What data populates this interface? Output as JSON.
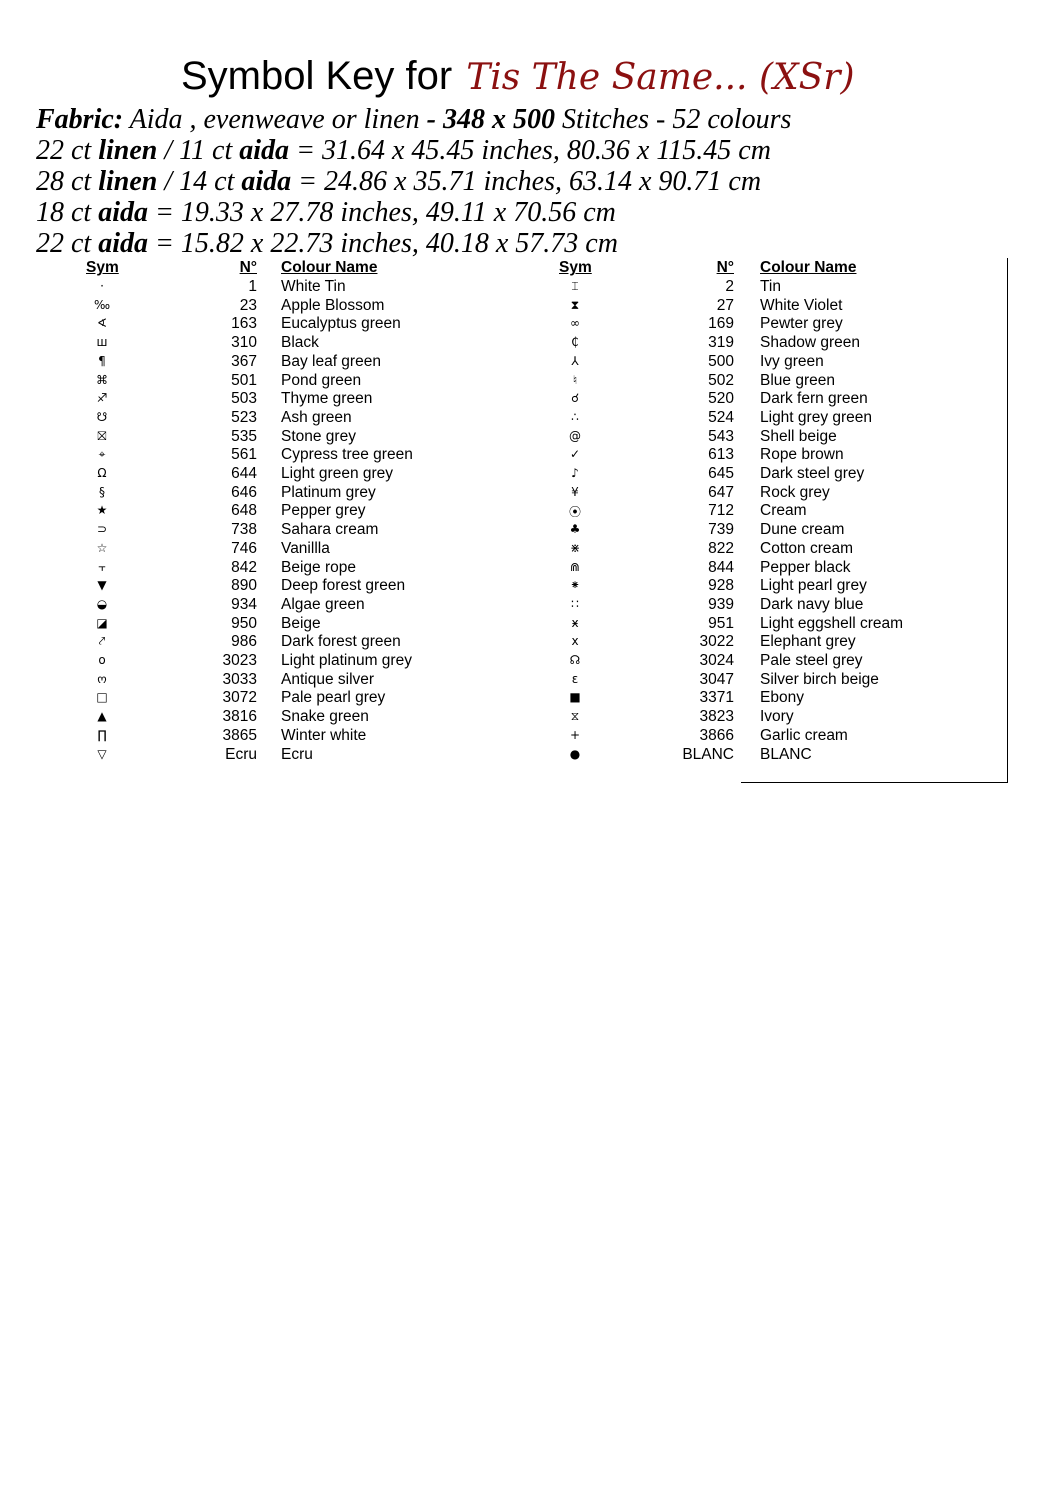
{
  "title": {
    "prefix": "Symbol Key for",
    "pattern_name": "Tis The Same... (XSr)",
    "pattern_color": "#8b1010"
  },
  "fabric": {
    "line1": {
      "label": "Fabric:",
      "text": " Aida , evenweave or  linen ",
      "bold": "- 348 x 500",
      "rest": " Stitches - 52 colours"
    },
    "sizes": [
      {
        "a": "22 ct ",
        "b": "linen",
        "c": " / 11 ct ",
        "d": "aida",
        "e": " = 31.64 x 45.45 inches, 80.36 x 115.45 cm"
      },
      {
        "a": "28 ct ",
        "b": "linen",
        "c": " / 14 ct ",
        "d": "aida",
        "e": " = 24.86 x 35.71 inches, 63.14 x 90.71 cm"
      },
      {
        "a": "18 ct ",
        "b": "aida",
        "c": "",
        "d": "",
        "e": "  = 19.33 x 27.78 inches, 49.11 x 70.56 cm"
      },
      {
        "a": "22 ct ",
        "b": "aida",
        "c": "",
        "d": "",
        "e": " = 15.82 x 22.73 inches, 40.18 x 57.73 cm"
      }
    ]
  },
  "headers": {
    "sym": "Sym",
    "num": "N°",
    "name": "Colour Name"
  },
  "left": [
    {
      "sym": "·",
      "num": "1",
      "name": "White Tin"
    },
    {
      "sym": "‰",
      "num": "23",
      "name": "Apple Blossom"
    },
    {
      "sym": "∢",
      "num": "163",
      "name": "Eucalyptus green"
    },
    {
      "sym": "ш",
      "num": "310",
      "name": "Black"
    },
    {
      "sym": "¶",
      "num": "367",
      "name": "Bay leaf green"
    },
    {
      "sym": "⌘",
      "num": "501",
      "name": "Pond green"
    },
    {
      "sym": "♐",
      "num": "503",
      "name": "Thyme green"
    },
    {
      "sym": "☋",
      "num": "523",
      "name": "Ash green"
    },
    {
      "sym": "⛝",
      "num": "535",
      "name": "Stone grey"
    },
    {
      "sym": "⌖",
      "num": "561",
      "name": "Cypress tree green"
    },
    {
      "sym": "Ω",
      "num": "644",
      "name": "Light green grey"
    },
    {
      "sym": "§",
      "num": "646",
      "name": "Platinum grey"
    },
    {
      "sym": "★",
      "num": "648",
      "name": "Pepper grey"
    },
    {
      "sym": "⊃",
      "num": "738",
      "name": "Sahara cream"
    },
    {
      "sym": "☆",
      "num": "746",
      "name": "Vanillla"
    },
    {
      "sym": "⫟",
      "num": "842",
      "name": "Beige rope"
    },
    {
      "sym": "▼",
      "num": "890",
      "name": "Deep forest green"
    },
    {
      "sym": "◒",
      "num": "934",
      "name": "Algae green"
    },
    {
      "sym": "◪",
      "num": "950",
      "name": "Beige"
    },
    {
      "sym": "⤤",
      "num": "986",
      "name": "Dark forest green"
    },
    {
      "sym": "o",
      "num": "3023",
      "name": "Light platinum grey"
    },
    {
      "sym": "ო",
      "num": "3033",
      "name": "Antique silver"
    },
    {
      "sym": "□",
      "num": "3072",
      "name": "Pale pearl grey"
    },
    {
      "sym": "▲",
      "num": "3816",
      "name": "Snake green"
    },
    {
      "sym": "∏",
      "num": "3865",
      "name": "Winter white"
    },
    {
      "sym": "▽",
      "num": "Ecru",
      "name": "Ecru"
    }
  ],
  "right": [
    {
      "sym": "⌶",
      "num": "2",
      "name": "Tin"
    },
    {
      "sym": "⧗",
      "num": "27",
      "name": "White Violet"
    },
    {
      "sym": "∞",
      "num": "169",
      "name": "Pewter grey"
    },
    {
      "sym": "₵",
      "num": "319",
      "name": "Shadow green"
    },
    {
      "sym": "⅄",
      "num": "500",
      "name": "Ivy green"
    },
    {
      "sym": "♮",
      "num": "502",
      "name": "Blue green"
    },
    {
      "sym": "☌",
      "num": "520",
      "name": "Dark fern green"
    },
    {
      "sym": "∴",
      "num": "524",
      "name": "Light grey green"
    },
    {
      "sym": "@",
      "num": "543",
      "name": "Shell beige"
    },
    {
      "sym": "✓",
      "num": "613",
      "name": "Rope brown"
    },
    {
      "sym": "♪",
      "num": "645",
      "name": "Dark steel grey"
    },
    {
      "sym": "¥",
      "num": "647",
      "name": "Rock grey"
    },
    {
      "sym": "⦿",
      "num": "712",
      "name": "Cream"
    },
    {
      "sym": "♣",
      "num": "739",
      "name": "Dune cream"
    },
    {
      "sym": "⋇",
      "num": "822",
      "name": "Cotton cream"
    },
    {
      "sym": "⋒",
      "num": "844",
      "name": "Pepper black"
    },
    {
      "sym": "⁕",
      "num": "928",
      "name": "Light pearl grey"
    },
    {
      "sym": "∷",
      "num": "939",
      "name": "Dark navy blue"
    },
    {
      "sym": "ӿ",
      "num": "951",
      "name": "Light eggshell cream"
    },
    {
      "sym": "x",
      "num": "3022",
      "name": "Elephant grey"
    },
    {
      "sym": "☊",
      "num": "3024",
      "name": "Pale steel grey"
    },
    {
      "sym": "ɛ",
      "num": "3047",
      "name": "Silver birch beige"
    },
    {
      "sym": "■",
      "num": "3371",
      "name": "Ebony"
    },
    {
      "sym": "⧖",
      "num": "3823",
      "name": "Ivory"
    },
    {
      "sym": "+",
      "num": "3866",
      "name": "Garlic cream"
    },
    {
      "sym": "●",
      "num": "BLANC",
      "name": "BLANC"
    }
  ]
}
